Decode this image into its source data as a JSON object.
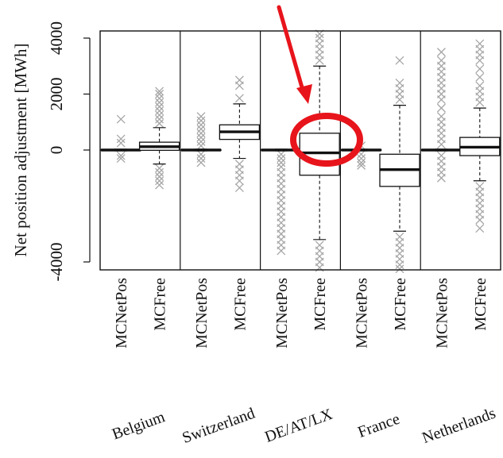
{
  "chart_data": {
    "type": "box",
    "ylabel": "Net position adjustment [MWh]",
    "ylim": [
      -4300,
      4200
    ],
    "yticks": [
      -4000,
      0,
      2000,
      4000
    ],
    "ytick_labels": [
      "-4000",
      "0",
      "2000",
      "4000"
    ],
    "grid": false,
    "groups": [
      {
        "label": "Belgium",
        "boxes": [
          {
            "label": "MCNetPos",
            "q1": -15,
            "median": 0,
            "q3": 15,
            "whisker_low": -30,
            "whisker_high": 30,
            "outliers": [
              1100,
              400,
              250,
              -200,
              -300
            ]
          },
          {
            "label": "MCFree",
            "q1": -10,
            "median": 120,
            "q3": 280,
            "whisker_low": -500,
            "whisker_high": 800,
            "outliers": [
              950,
              1100,
              1250,
              1400,
              1550,
              1700,
              1850,
              2000,
              2100,
              -650,
              -800,
              -950,
              -1100,
              -1250
            ]
          }
        ]
      },
      {
        "label": "Switzerland",
        "boxes": [
          {
            "label": "MCNetPos",
            "q1": -15,
            "median": 0,
            "q3": 15,
            "whisker_low": -30,
            "whisker_high": 30,
            "outliers": [
              150,
              300,
              450,
              600,
              750,
              900,
              1050,
              1200,
              -150,
              -300,
              -450
            ]
          },
          {
            "label": "MCFree",
            "q1": 380,
            "median": 650,
            "q3": 900,
            "whisker_low": -300,
            "whisker_high": 1650,
            "outliers": [
              1850,
              2300,
              2500,
              -500,
              -700,
              -900,
              -1100,
              -1350
            ]
          }
        ]
      },
      {
        "label": "DE/AT/LX",
        "boxes": [
          {
            "label": "MCNetPos",
            "q1": -15,
            "median": 0,
            "q3": 15,
            "whisker_low": -30,
            "whisker_high": 30,
            "outliers": [
              -150,
              -300,
              -450,
              -600,
              -800,
              -1000,
              -1200,
              -1400,
              -1600,
              -1800,
              -2000,
              -2200,
              -2400,
              -2600,
              -2800,
              -3000,
              -3200,
              -3400,
              -3600
            ]
          },
          {
            "label": "MCFree",
            "q1": -900,
            "median": -100,
            "q3": 600,
            "whisker_low": -3200,
            "whisker_high": 3000,
            "outliers": [
              3200,
              3400,
              3600,
              3800,
              4000,
              4150,
              -3400,
              -3600,
              -3800,
              -4000,
              -4200
            ]
          }
        ]
      },
      {
        "label": "France",
        "boxes": [
          {
            "label": "MCNetPos",
            "q1": -15,
            "median": 0,
            "q3": 15,
            "whisker_low": -30,
            "whisker_high": 30,
            "outliers": [
              -150,
              -300,
              -450,
              -550,
              150
            ]
          },
          {
            "label": "MCFree",
            "q1": -1300,
            "median": -700,
            "q3": -150,
            "whisker_low": -2900,
            "whisker_high": 1600,
            "outliers": [
              1800,
              2000,
              2200,
              2400,
              3200,
              -3100,
              -3300,
              -3500,
              -3700,
              -3900,
              -4100,
              -4250
            ]
          }
        ]
      },
      {
        "label": "Netherlands",
        "boxes": [
          {
            "label": "MCNetPos",
            "q1": -15,
            "median": 0,
            "q3": 15,
            "whisker_low": -30,
            "whisker_high": 30,
            "outliers": [
              200,
              400,
              600,
              800,
              1000,
              1200,
              1500,
              1800,
              2000,
              2200,
              2400,
              2600,
              2800,
              3000,
              3200,
              3500,
              -200,
              -400,
              -600,
              -800,
              -1000
            ]
          },
          {
            "label": "MCFree",
            "q1": -200,
            "median": 100,
            "q3": 450,
            "whisker_low": -1100,
            "whisker_high": 1500,
            "outliers": [
              1700,
              1900,
              2100,
              2300,
              2600,
              2900,
              3200,
              3400,
              3600,
              3800,
              -1300,
              -1500,
              -1700,
              -1900,
              -2100,
              -2300,
              -2500,
              -2800
            ]
          }
        ]
      }
    ],
    "annotation": {
      "highlight_group": "DE/AT/LX",
      "highlight_box": "MCFree",
      "color": "#e8141b"
    },
    "colors": {
      "box_stroke": "#111111",
      "outlier": "#a6a6a6",
      "annotation": "#e8141b"
    }
  }
}
